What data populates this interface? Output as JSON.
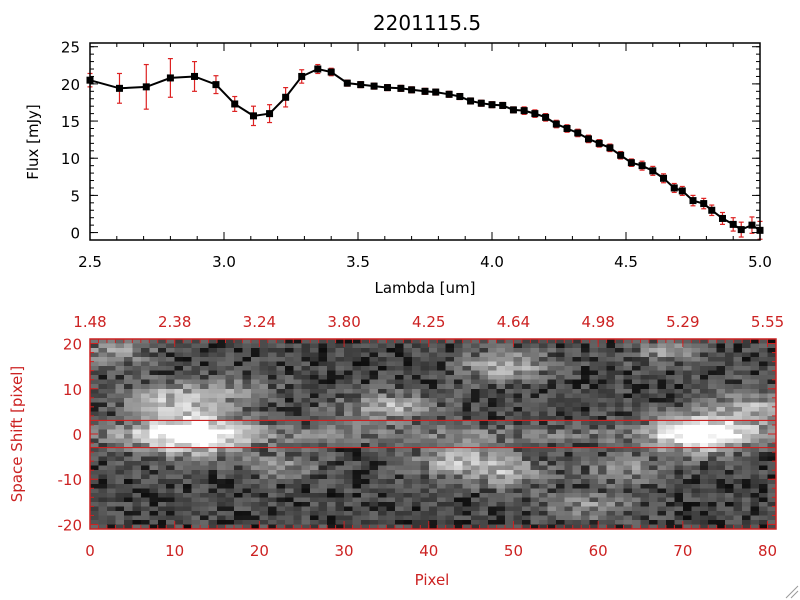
{
  "chart_data": [
    {
      "type": "line",
      "title": "2201115.5",
      "xlabel": "Lambda [um]",
      "ylabel": "Flux [mJy]",
      "xlim": [
        2.5,
        5.0
      ],
      "ylim": [
        -1,
        25.5
      ],
      "x_ticks": [
        {
          "value": 2.5,
          "label": "2.5"
        },
        {
          "value": 3.0,
          "label": "3.0"
        },
        {
          "value": 3.5,
          "label": "3.5"
        },
        {
          "value": 4.0,
          "label": "4.0"
        },
        {
          "value": 4.5,
          "label": "4.5"
        },
        {
          "value": 5.0,
          "label": "5.0"
        }
      ],
      "y_ticks": [
        {
          "value": 0,
          "label": "0"
        },
        {
          "value": 5,
          "label": "5"
        },
        {
          "value": 10,
          "label": "10"
        },
        {
          "value": 15,
          "label": "15"
        },
        {
          "value": 20,
          "label": "20"
        },
        {
          "value": 25,
          "label": "25"
        }
      ],
      "colors": {
        "line": "#000000",
        "marker": "#000000",
        "errorbar": "#dd2222"
      },
      "x": [
        2.5,
        2.61,
        2.71,
        2.8,
        2.89,
        2.97,
        3.04,
        3.11,
        3.17,
        3.23,
        3.29,
        3.35,
        3.4,
        3.46,
        3.51,
        3.56,
        3.61,
        3.66,
        3.7,
        3.75,
        3.79,
        3.84,
        3.88,
        3.92,
        3.96,
        4.0,
        4.04,
        4.08,
        4.12,
        4.16,
        4.2,
        4.24,
        4.28,
        4.32,
        4.36,
        4.4,
        4.44,
        4.48,
        4.52,
        4.56,
        4.6,
        4.64,
        4.68,
        4.71,
        4.75,
        4.79,
        4.82,
        4.86,
        4.9,
        4.93,
        4.97,
        5.0
      ],
      "values": [
        20.5,
        19.4,
        19.6,
        20.8,
        21.0,
        19.9,
        17.3,
        15.7,
        16.0,
        18.2,
        21.0,
        22.0,
        21.6,
        20.1,
        19.9,
        19.7,
        19.5,
        19.4,
        19.2,
        19.0,
        18.9,
        18.6,
        18.3,
        17.7,
        17.4,
        17.2,
        17.1,
        16.5,
        16.4,
        16.0,
        15.5,
        14.6,
        14.0,
        13.4,
        12.6,
        12.0,
        11.4,
        10.4,
        9.4,
        9.0,
        8.3,
        7.3,
        6.0,
        5.6,
        4.3,
        3.9,
        3.0,
        1.9,
        1.1,
        0.4,
        1.0,
        0.3
      ],
      "errors": [
        0.9,
        2.0,
        3.0,
        2.6,
        2.0,
        1.2,
        1.0,
        1.3,
        1.2,
        1.3,
        0.9,
        0.6,
        0.5,
        0.4,
        0.4,
        0.4,
        0.4,
        0.4,
        0.4,
        0.4,
        0.4,
        0.4,
        0.4,
        0.4,
        0.4,
        0.4,
        0.4,
        0.4,
        0.5,
        0.5,
        0.5,
        0.5,
        0.5,
        0.5,
        0.5,
        0.5,
        0.5,
        0.5,
        0.5,
        0.6,
        0.6,
        0.6,
        0.6,
        0.6,
        0.7,
        0.7,
        0.7,
        0.8,
        0.9,
        1.0,
        1.1,
        1.2
      ]
    },
    {
      "type": "heatmap",
      "xlabel": "Pixel",
      "ylabel": "Space Shift [pixel]",
      "xlim": [
        0,
        81
      ],
      "ylim": [
        -21,
        21
      ],
      "x_ticks": [
        {
          "value": 0,
          "label": "0"
        },
        {
          "value": 10,
          "label": "10"
        },
        {
          "value": 20,
          "label": "20"
        },
        {
          "value": 30,
          "label": "30"
        },
        {
          "value": 40,
          "label": "40"
        },
        {
          "value": 50,
          "label": "50"
        },
        {
          "value": 60,
          "label": "60"
        },
        {
          "value": 70,
          "label": "70"
        },
        {
          "value": 80,
          "label": "80"
        }
      ],
      "top_ticks": [
        {
          "value": 0,
          "label": "1.48"
        },
        {
          "value": 10,
          "label": "2.38"
        },
        {
          "value": 20,
          "label": "3.24"
        },
        {
          "value": 30,
          "label": "3.80"
        },
        {
          "value": 40,
          "label": "4.25"
        },
        {
          "value": 50,
          "label": "4.64"
        },
        {
          "value": 60,
          "label": "4.98"
        },
        {
          "value": 70,
          "label": "5.29"
        },
        {
          "value": 80,
          "label": "5.55"
        }
      ],
      "y_ticks": [
        {
          "value": -20,
          "label": "-20"
        },
        {
          "value": -10,
          "label": "-10"
        },
        {
          "value": 0,
          "label": "0"
        },
        {
          "value": 10,
          "label": "10"
        },
        {
          "value": 20,
          "label": "20"
        }
      ],
      "extraction_aperture": [
        -3,
        3
      ],
      "blobs": [
        {
          "x": 12,
          "y": 0,
          "sx": 4.5,
          "sy": 3.5,
          "amp": 0.8
        },
        {
          "x": 72,
          "y": 0,
          "sx": 4.0,
          "sy": 3.2,
          "amp": 0.75
        },
        {
          "x": 10,
          "y": 8,
          "sx": 4.0,
          "sy": 2.6,
          "amp": 0.45
        },
        {
          "x": 18,
          "y": 10,
          "sx": 3.0,
          "sy": 2.0,
          "amp": 0.25
        },
        {
          "x": 35,
          "y": 6,
          "sx": 4.0,
          "sy": 2.2,
          "amp": 0.45
        },
        {
          "x": 49,
          "y": 15,
          "sx": 3.5,
          "sy": 2.5,
          "amp": 0.45
        },
        {
          "x": 44,
          "y": -6,
          "sx": 4.0,
          "sy": 2.5,
          "amp": 0.5
        },
        {
          "x": 50,
          "y": -9,
          "sx": 3.0,
          "sy": 2.2,
          "amp": 0.35
        },
        {
          "x": 23,
          "y": -7,
          "sx": 3.0,
          "sy": 2.0,
          "amp": 0.3
        },
        {
          "x": 63,
          "y": -8,
          "sx": 3.0,
          "sy": 2.2,
          "amp": 0.3
        },
        {
          "x": 78,
          "y": 6,
          "sx": 3.0,
          "sy": 3.0,
          "amp": 0.4
        },
        {
          "x": 3,
          "y": 18,
          "sx": 3.0,
          "sy": 2.0,
          "amp": 0.35
        },
        {
          "x": 59,
          "y": -16,
          "sx": 4.0,
          "sy": 2.0,
          "amp": 0.3
        },
        {
          "x": 68,
          "y": 18,
          "sx": 3.0,
          "sy": 2.0,
          "amp": 0.3
        }
      ],
      "colors": {
        "frame": "#cc2222",
        "aperture": "#cc2222",
        "colormap": "grayscale"
      }
    }
  ]
}
